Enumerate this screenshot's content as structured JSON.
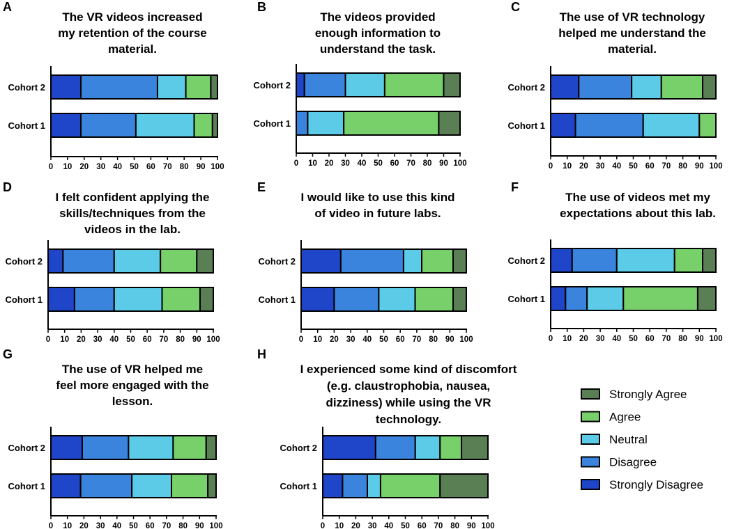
{
  "chart_data": [
    {
      "type": "bar",
      "orientation": "horizontal",
      "stacked": true,
      "panel": "A",
      "title": [
        "The VR videos increased",
        "my retention of the course",
        "material."
      ],
      "categories": [
        "Cohort 2",
        "Cohort 1"
      ],
      "series": [
        {
          "name": "Strongly Disagree",
          "values": [
            18,
            18
          ]
        },
        {
          "name": "Disagree",
          "values": [
            46,
            33
          ]
        },
        {
          "name": "Neutral",
          "values": [
            17,
            35
          ]
        },
        {
          "name": "Agree",
          "values": [
            15,
            11
          ]
        },
        {
          "name": "Strongly Agree",
          "values": [
            4,
            3
          ]
        }
      ],
      "xlim": [
        0,
        100
      ],
      "xticks": [
        "0",
        "10",
        "20",
        "30",
        "40",
        "50",
        "60",
        "70",
        "80",
        "90",
        "100"
      ]
    },
    {
      "type": "bar",
      "orientation": "horizontal",
      "stacked": true,
      "panel": "B",
      "title": [
        "The videos provided",
        "enough information to",
        "understand the task."
      ],
      "categories": [
        "Cohort 2",
        "Cohort 1"
      ],
      "series": [
        {
          "name": "Strongly Disagree",
          "values": [
            5,
            0
          ]
        },
        {
          "name": "Disagree",
          "values": [
            25,
            7
          ]
        },
        {
          "name": "Neutral",
          "values": [
            24,
            22
          ]
        },
        {
          "name": "Agree",
          "values": [
            36,
            58
          ]
        },
        {
          "name": "Strongly Agree",
          "values": [
            10,
            13
          ]
        }
      ],
      "xlim": [
        0,
        100
      ],
      "xticks": [
        "0",
        "10",
        "20",
        "30",
        "40",
        "50",
        "60",
        "70",
        "80",
        "90",
        "100"
      ]
    },
    {
      "type": "bar",
      "orientation": "horizontal",
      "stacked": true,
      "panel": "C",
      "title": [
        "The use of VR technology",
        "helped me understand the",
        "material."
      ],
      "categories": [
        "Cohort 2",
        "Cohort 1"
      ],
      "series": [
        {
          "name": "Strongly Disagree",
          "values": [
            17,
            15
          ]
        },
        {
          "name": "Disagree",
          "values": [
            32,
            41
          ]
        },
        {
          "name": "Neutral",
          "values": [
            18,
            34
          ]
        },
        {
          "name": "Agree",
          "values": [
            25,
            10
          ]
        },
        {
          "name": "Strongly Agree",
          "values": [
            8,
            0
          ]
        }
      ],
      "xlim": [
        0,
        100
      ],
      "xticks": [
        "0",
        "10",
        "20",
        "30",
        "40",
        "50",
        "60",
        "70",
        "80",
        "90",
        "100"
      ]
    },
    {
      "type": "bar",
      "orientation": "horizontal",
      "stacked": true,
      "panel": "D",
      "title": [
        "I felt confident applying the",
        "skills/techniques from the",
        "videos in the lab."
      ],
      "categories": [
        "Cohort 2",
        "Cohort 1"
      ],
      "series": [
        {
          "name": "Strongly Disagree",
          "values": [
            9,
            16
          ]
        },
        {
          "name": "Disagree",
          "values": [
            31,
            24
          ]
        },
        {
          "name": "Neutral",
          "values": [
            28,
            29
          ]
        },
        {
          "name": "Agree",
          "values": [
            22,
            23
          ]
        },
        {
          "name": "Strongly Agree",
          "values": [
            10,
            8
          ]
        }
      ],
      "xlim": [
        0,
        100
      ],
      "xticks": [
        "0",
        "10",
        "20",
        "30",
        "40",
        "50",
        "60",
        "70",
        "80",
        "90",
        "100"
      ]
    },
    {
      "type": "bar",
      "orientation": "horizontal",
      "stacked": true,
      "panel": "E",
      "title": [
        "I would like to use this kind",
        "of video in future labs."
      ],
      "categories": [
        "Cohort 2",
        "Cohort 1"
      ],
      "series": [
        {
          "name": "Strongly Disagree",
          "values": [
            24,
            20
          ]
        },
        {
          "name": "Disagree",
          "values": [
            38,
            27
          ]
        },
        {
          "name": "Neutral",
          "values": [
            11,
            22
          ]
        },
        {
          "name": "Agree",
          "values": [
            19,
            23
          ]
        },
        {
          "name": "Strongly Agree",
          "values": [
            8,
            8
          ]
        }
      ],
      "xlim": [
        0,
        100
      ],
      "xticks": [
        "0",
        "10",
        "20",
        "30",
        "40",
        "50",
        "60",
        "70",
        "80",
        "90",
        "100"
      ]
    },
    {
      "type": "bar",
      "orientation": "horizontal",
      "stacked": true,
      "panel": "F",
      "title": [
        "The use of videos met my",
        "expectations about this lab."
      ],
      "categories": [
        "Cohort 2",
        "Cohort 1"
      ],
      "series": [
        {
          "name": "Strongly Disagree",
          "values": [
            13,
            9
          ]
        },
        {
          "name": "Disagree",
          "values": [
            27,
            13
          ]
        },
        {
          "name": "Neutral",
          "values": [
            35,
            22
          ]
        },
        {
          "name": "Agree",
          "values": [
            17,
            45
          ]
        },
        {
          "name": "Strongly Agree",
          "values": [
            8,
            11
          ]
        }
      ],
      "xlim": [
        0,
        100
      ],
      "xticks": [
        "0",
        "10",
        "20",
        "30",
        "40",
        "50",
        "60",
        "70",
        "80",
        "90",
        "100"
      ]
    },
    {
      "type": "bar",
      "orientation": "horizontal",
      "stacked": true,
      "panel": "G",
      "title": [
        "The use of VR helped me",
        "feel more engaged with the",
        "lesson."
      ],
      "categories": [
        "Cohort 2",
        "Cohort 1"
      ],
      "series": [
        {
          "name": "Strongly Disagree",
          "values": [
            19,
            18
          ]
        },
        {
          "name": "Disagree",
          "values": [
            28,
            31
          ]
        },
        {
          "name": "Neutral",
          "values": [
            27,
            24
          ]
        },
        {
          "name": "Agree",
          "values": [
            20,
            22
          ]
        },
        {
          "name": "Strongly Agree",
          "values": [
            6,
            5
          ]
        }
      ],
      "xlim": [
        0,
        100
      ],
      "xticks": [
        "0",
        "10",
        "20",
        "30",
        "40",
        "50",
        "60",
        "70",
        "80",
        "90",
        "100"
      ]
    },
    {
      "type": "bar",
      "orientation": "horizontal",
      "stacked": true,
      "panel": "H",
      "title": [
        "I experienced some kind of discomfort",
        "(e.g. claustrophobia, nausea,",
        "dizziness) while using the VR",
        "technology."
      ],
      "categories": [
        "Cohort 2",
        "Cohort 1"
      ],
      "series": [
        {
          "name": "Strongly Disagree",
          "values": [
            32,
            12
          ]
        },
        {
          "name": "Disagree",
          "values": [
            24,
            15
          ]
        },
        {
          "name": "Neutral",
          "values": [
            15,
            8
          ]
        },
        {
          "name": "Agree",
          "values": [
            13,
            36
          ]
        },
        {
          "name": "Strongly Agree",
          "values": [
            16,
            29
          ]
        }
      ],
      "xlim": [
        0,
        100
      ],
      "xticks": [
        "0",
        "10",
        "20",
        "30",
        "40",
        "50",
        "60",
        "70",
        "80",
        "90",
        "100"
      ]
    }
  ],
  "legend": {
    "items": [
      {
        "name": "Strongly Agree"
      },
      {
        "name": "Agree"
      },
      {
        "name": "Neutral"
      },
      {
        "name": "Disagree"
      },
      {
        "name": "Strongly Disagree"
      }
    ]
  },
  "colors": {
    "Strongly Disagree": "#1f45c9",
    "Disagree": "#3b84dd",
    "Neutral": "#5ccbe8",
    "Agree": "#77d06a",
    "Strongly Agree": "#5a7f55"
  }
}
